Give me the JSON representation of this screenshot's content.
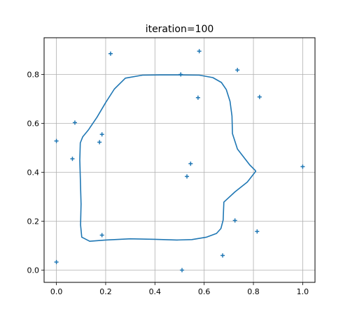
{
  "chart_data": {
    "type": "scatter",
    "title": "iteration=100",
    "xlabel": "",
    "ylabel": "",
    "xlim": [
      -0.05,
      1.05
    ],
    "ylim": [
      -0.05,
      0.95
    ],
    "xticks": [
      "0.0",
      "0.2",
      "0.4",
      "0.6",
      "0.8",
      "1.0"
    ],
    "xtick_values": [
      0.0,
      0.2,
      0.4,
      0.6,
      0.8,
      1.0
    ],
    "yticks": [
      "0.0",
      "0.2",
      "0.4",
      "0.6",
      "0.8"
    ],
    "ytick_values": [
      0.0,
      0.2,
      0.4,
      0.6,
      0.8
    ],
    "grid": true,
    "colors": {
      "series": "#1f77b4",
      "grid": "#b0b0b0"
    },
    "points": [
      {
        "x": 0.22,
        "y": 0.885
      },
      {
        "x": 0.58,
        "y": 0.895
      },
      {
        "x": 0.735,
        "y": 0.818
      },
      {
        "x": 0.505,
        "y": 0.8
      },
      {
        "x": 0.575,
        "y": 0.705
      },
      {
        "x": 0.825,
        "y": 0.708
      },
      {
        "x": 0.075,
        "y": 0.603
      },
      {
        "x": 0.185,
        "y": 0.555
      },
      {
        "x": 0.0,
        "y": 0.528
      },
      {
        "x": 0.175,
        "y": 0.523
      },
      {
        "x": 0.065,
        "y": 0.455
      },
      {
        "x": 0.545,
        "y": 0.435
      },
      {
        "x": 0.53,
        "y": 0.383
      },
      {
        "x": 1.0,
        "y": 0.423
      },
      {
        "x": 0.725,
        "y": 0.203
      },
      {
        "x": 0.815,
        "y": 0.158
      },
      {
        "x": 0.185,
        "y": 0.143
      },
      {
        "x": 0.675,
        "y": 0.06
      },
      {
        "x": 0.0,
        "y": 0.033
      },
      {
        "x": 0.51,
        "y": 0.0
      }
    ],
    "curve": [
      {
        "x": 0.81,
        "y": 0.405
      },
      {
        "x": 0.785,
        "y": 0.43
      },
      {
        "x": 0.735,
        "y": 0.495
      },
      {
        "x": 0.715,
        "y": 0.558
      },
      {
        "x": 0.713,
        "y": 0.63
      },
      {
        "x": 0.705,
        "y": 0.69
      },
      {
        "x": 0.69,
        "y": 0.738
      },
      {
        "x": 0.67,
        "y": 0.767
      },
      {
        "x": 0.635,
        "y": 0.787
      },
      {
        "x": 0.58,
        "y": 0.797
      },
      {
        "x": 0.5,
        "y": 0.798
      },
      {
        "x": 0.42,
        "y": 0.798
      },
      {
        "x": 0.35,
        "y": 0.797
      },
      {
        "x": 0.28,
        "y": 0.785
      },
      {
        "x": 0.235,
        "y": 0.74
      },
      {
        "x": 0.2,
        "y": 0.685
      },
      {
        "x": 0.165,
        "y": 0.625
      },
      {
        "x": 0.13,
        "y": 0.573
      },
      {
        "x": 0.107,
        "y": 0.545
      },
      {
        "x": 0.097,
        "y": 0.52
      },
      {
        "x": 0.095,
        "y": 0.45
      },
      {
        "x": 0.097,
        "y": 0.38
      },
      {
        "x": 0.1,
        "y": 0.27
      },
      {
        "x": 0.098,
        "y": 0.185
      },
      {
        "x": 0.103,
        "y": 0.135
      },
      {
        "x": 0.135,
        "y": 0.118
      },
      {
        "x": 0.2,
        "y": 0.123
      },
      {
        "x": 0.3,
        "y": 0.128
      },
      {
        "x": 0.4,
        "y": 0.126
      },
      {
        "x": 0.49,
        "y": 0.123
      },
      {
        "x": 0.55,
        "y": 0.125
      },
      {
        "x": 0.61,
        "y": 0.135
      },
      {
        "x": 0.65,
        "y": 0.15
      },
      {
        "x": 0.668,
        "y": 0.17
      },
      {
        "x": 0.677,
        "y": 0.205
      },
      {
        "x": 0.68,
        "y": 0.278
      },
      {
        "x": 0.725,
        "y": 0.32
      },
      {
        "x": 0.775,
        "y": 0.36
      },
      {
        "x": 0.81,
        "y": 0.405
      }
    ]
  }
}
